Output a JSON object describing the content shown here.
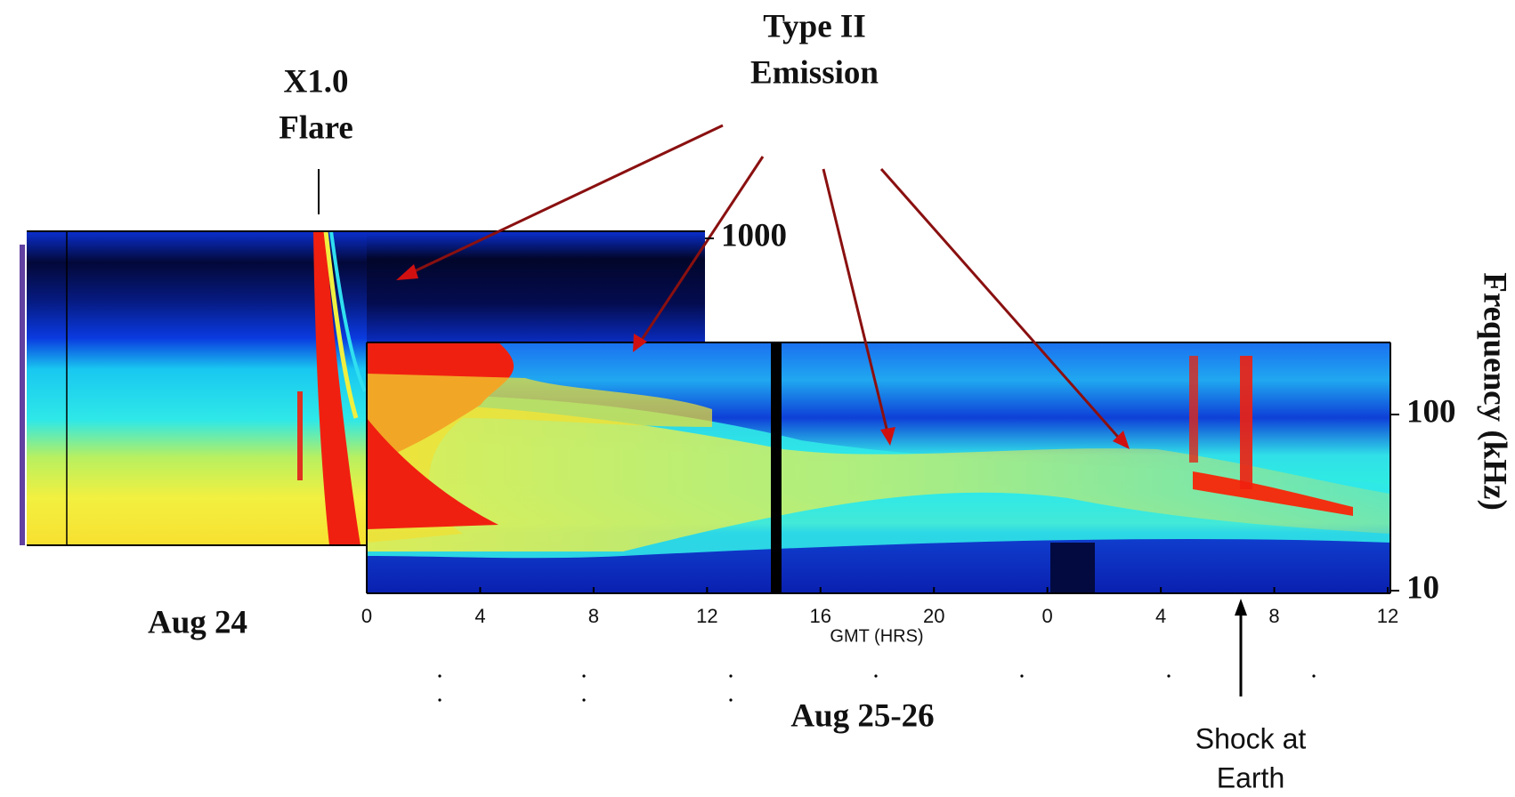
{
  "chart_data": {
    "type": "spectrogram",
    "annotations": [
      {
        "lines": [
          "Type II",
          "Emission"
        ]
      },
      {
        "lines": [
          "X1.0",
          "Flare"
        ]
      },
      {
        "lines": [
          "Shock at",
          "Earth"
        ]
      }
    ],
    "date_labels": [
      "Aug 24",
      "Aug 25-26"
    ],
    "xlabel": "GMT (HRS)",
    "ylabel": "Frequency (kHz)",
    "xlim": [
      0,
      36
    ],
    "xticks": [
      0,
      4,
      8,
      12,
      16,
      20,
      {
        "value": 24,
        "label": "0"
      },
      {
        "value": 28,
        "label": "4"
      },
      {
        "value": 32,
        "label": "8"
      },
      {
        "value": 36,
        "label": "12"
      }
    ],
    "ylim": [
      10,
      1000
    ],
    "yticks": [
      10,
      100,
      1000
    ],
    "log_y": true
  }
}
